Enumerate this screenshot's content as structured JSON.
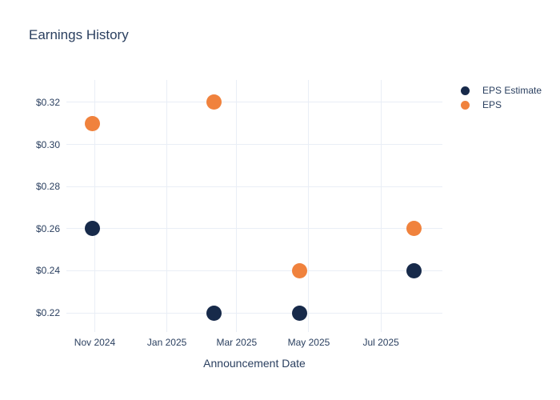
{
  "title": "Earnings History",
  "xaxis_title": "Announcement Date",
  "colors": {
    "title_text": "#2a3f5f",
    "tick_text": "#2a3f5f",
    "grid": "#e9eef6",
    "background": "#ffffff",
    "eps_estimate": "#172a4a",
    "eps": "#f0823d"
  },
  "legend": {
    "items": [
      {
        "label": "EPS Estimate",
        "color": "#172a4a"
      },
      {
        "label": "EPS",
        "color": "#f0823d"
      }
    ],
    "position": "top-right"
  },
  "chart_data": {
    "type": "scatter",
    "title": "Earnings History",
    "xlabel": "Announcement Date",
    "ylabel": "",
    "grid": true,
    "legend_position": "top-right",
    "x": [
      "2024-10-30",
      "2025-02-10",
      "2025-04-23",
      "2025-07-29"
    ],
    "series": [
      {
        "name": "EPS Estimate",
        "color": "#172a4a",
        "marker": "circle",
        "values": [
          0.26,
          0.22,
          0.22,
          0.24
        ]
      },
      {
        "name": "EPS",
        "color": "#f0823d",
        "marker": "circle",
        "values": [
          0.31,
          0.32,
          0.24,
          0.26
        ]
      }
    ],
    "xlim": [
      "2024-10-08",
      "2025-08-22"
    ],
    "ylim": [
      0.2109,
      0.3306
    ],
    "yticks": [
      {
        "value": 0.22,
        "label": "$0.22"
      },
      {
        "value": 0.24,
        "label": "$0.24"
      },
      {
        "value": 0.26,
        "label": "$0.26"
      },
      {
        "value": 0.28,
        "label": "$0.28"
      },
      {
        "value": 0.3,
        "label": "$0.30"
      },
      {
        "value": 0.32,
        "label": "$0.32"
      }
    ],
    "xticks": [
      {
        "date": "2024-11-01",
        "label": "Nov 2024"
      },
      {
        "date": "2025-01-01",
        "label": "Jan 2025"
      },
      {
        "date": "2025-03-01",
        "label": "Mar 2025"
      },
      {
        "date": "2025-05-01",
        "label": "May 2025"
      },
      {
        "date": "2025-07-01",
        "label": "Jul 2025"
      }
    ]
  }
}
